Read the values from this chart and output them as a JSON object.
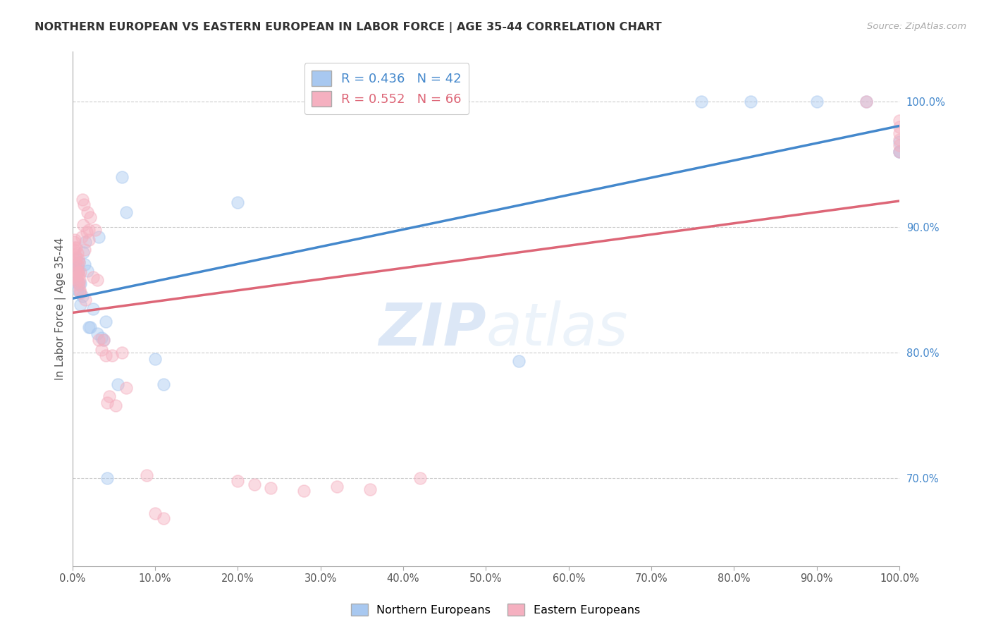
{
  "title": "NORTHERN EUROPEAN VS EASTERN EUROPEAN IN LABOR FORCE | AGE 35-44 CORRELATION CHART",
  "source": "Source: ZipAtlas.com",
  "ylabel": "In Labor Force | Age 35-44",
  "watermark_zip": "ZIP",
  "watermark_atlas": "atlas",
  "blue_label": "Northern Europeans",
  "pink_label": "Eastern Europeans",
  "blue_R": 0.436,
  "blue_N": 42,
  "pink_R": 0.552,
  "pink_N": 66,
  "blue_color": "#a8c8f0",
  "pink_color": "#f5b0c0",
  "blue_line_color": "#4488cc",
  "pink_line_color": "#dd6677",
  "xlim": [
    0.0,
    1.0
  ],
  "ylim": [
    0.63,
    1.04
  ],
  "xtick_positions": [
    0.0,
    0.1,
    0.2,
    0.3,
    0.4,
    0.5,
    0.6,
    0.7,
    0.8,
    0.9,
    1.0
  ],
  "xticklabels": [
    "0.0%",
    "10.0%",
    "20.0%",
    "30.0%",
    "40.0%",
    "50.0%",
    "60.0%",
    "70.0%",
    "80.0%",
    "90.0%",
    "100.0%"
  ],
  "ytick_positions": [
    0.7,
    0.8,
    0.9,
    1.0
  ],
  "yticklabels": [
    "70.0%",
    "80.0%",
    "90.0%",
    "100.0%"
  ],
  "blue_x": [
    0.002,
    0.003,
    0.004,
    0.004,
    0.005,
    0.005,
    0.006,
    0.006,
    0.007,
    0.008,
    0.008,
    0.009,
    0.01,
    0.01,
    0.012,
    0.013,
    0.015,
    0.016,
    0.018,
    0.02,
    0.022,
    0.025,
    0.03,
    0.032,
    0.035,
    0.038,
    0.04,
    0.042,
    0.055,
    0.06,
    0.065,
    0.1,
    0.11,
    0.2,
    0.54,
    0.76,
    0.82,
    0.9,
    0.96,
    1.0,
    1.0,
    1.0
  ],
  "blue_y": [
    0.858,
    0.866,
    0.862,
    0.87,
    0.856,
    0.875,
    0.85,
    0.868,
    0.865,
    0.855,
    0.872,
    0.848,
    0.838,
    0.855,
    0.845,
    0.88,
    0.87,
    0.888,
    0.865,
    0.82,
    0.82,
    0.835,
    0.815,
    0.892,
    0.812,
    0.81,
    0.825,
    0.7,
    0.775,
    0.94,
    0.912,
    0.795,
    0.775,
    0.92,
    0.793,
    1.0,
    1.0,
    1.0,
    1.0,
    0.96,
    0.96,
    0.968
  ],
  "pink_x": [
    0.002,
    0.002,
    0.003,
    0.003,
    0.003,
    0.004,
    0.004,
    0.005,
    0.005,
    0.005,
    0.005,
    0.006,
    0.006,
    0.006,
    0.006,
    0.007,
    0.007,
    0.007,
    0.008,
    0.008,
    0.008,
    0.009,
    0.009,
    0.01,
    0.01,
    0.011,
    0.012,
    0.013,
    0.014,
    0.015,
    0.016,
    0.017,
    0.018,
    0.02,
    0.02,
    0.022,
    0.025,
    0.028,
    0.03,
    0.032,
    0.035,
    0.038,
    0.04,
    0.042,
    0.045,
    0.048,
    0.052,
    0.06,
    0.065,
    0.09,
    0.1,
    0.11,
    0.2,
    0.22,
    0.24,
    0.28,
    0.32,
    0.36,
    0.42,
    0.96,
    1.0,
    1.0,
    1.0,
    1.0,
    1.0,
    1.0
  ],
  "pink_y": [
    0.882,
    0.888,
    0.878,
    0.884,
    0.89,
    0.862,
    0.872,
    0.86,
    0.866,
    0.876,
    0.884,
    0.858,
    0.864,
    0.87,
    0.879,
    0.856,
    0.864,
    0.875,
    0.854,
    0.862,
    0.872,
    0.85,
    0.858,
    0.848,
    0.864,
    0.892,
    0.922,
    0.902,
    0.918,
    0.882,
    0.842,
    0.896,
    0.912,
    0.89,
    0.898,
    0.908,
    0.86,
    0.898,
    0.858,
    0.81,
    0.802,
    0.81,
    0.798,
    0.76,
    0.765,
    0.798,
    0.758,
    0.8,
    0.772,
    0.702,
    0.672,
    0.668,
    0.698,
    0.695,
    0.692,
    0.69,
    0.693,
    0.691,
    0.7,
    1.0,
    0.96,
    0.965,
    0.97,
    0.975,
    0.98,
    0.985
  ]
}
